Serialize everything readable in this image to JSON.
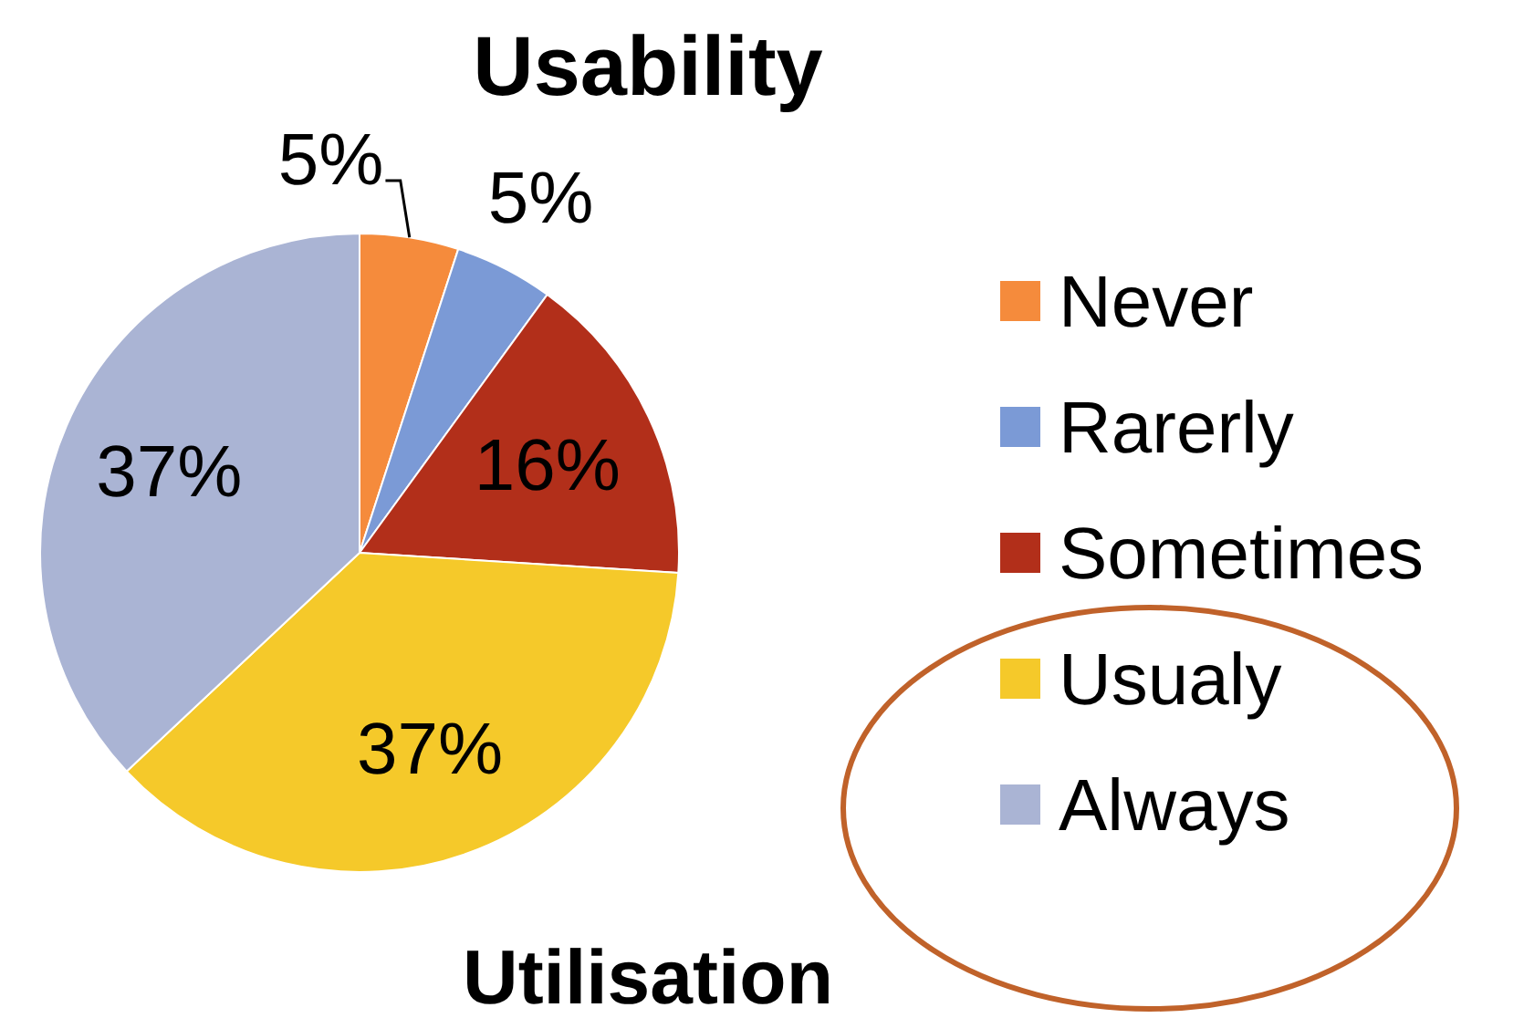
{
  "chart_data": {
    "type": "pie",
    "title": "Usability",
    "categories": [
      "Never",
      "Rarerly",
      "Sometimes",
      "Usualy",
      "Always"
    ],
    "values": [
      5,
      5,
      16,
      37,
      37
    ],
    "value_labels": [
      "5%",
      "5%",
      "16%",
      "37%",
      "37%"
    ],
    "colors": [
      "#f58b3c",
      "#7b9ad6",
      "#b22f1a",
      "#f5c92a",
      "#aab4d4"
    ],
    "legend": "right",
    "annotations": [
      "Utilisation"
    ]
  }
}
